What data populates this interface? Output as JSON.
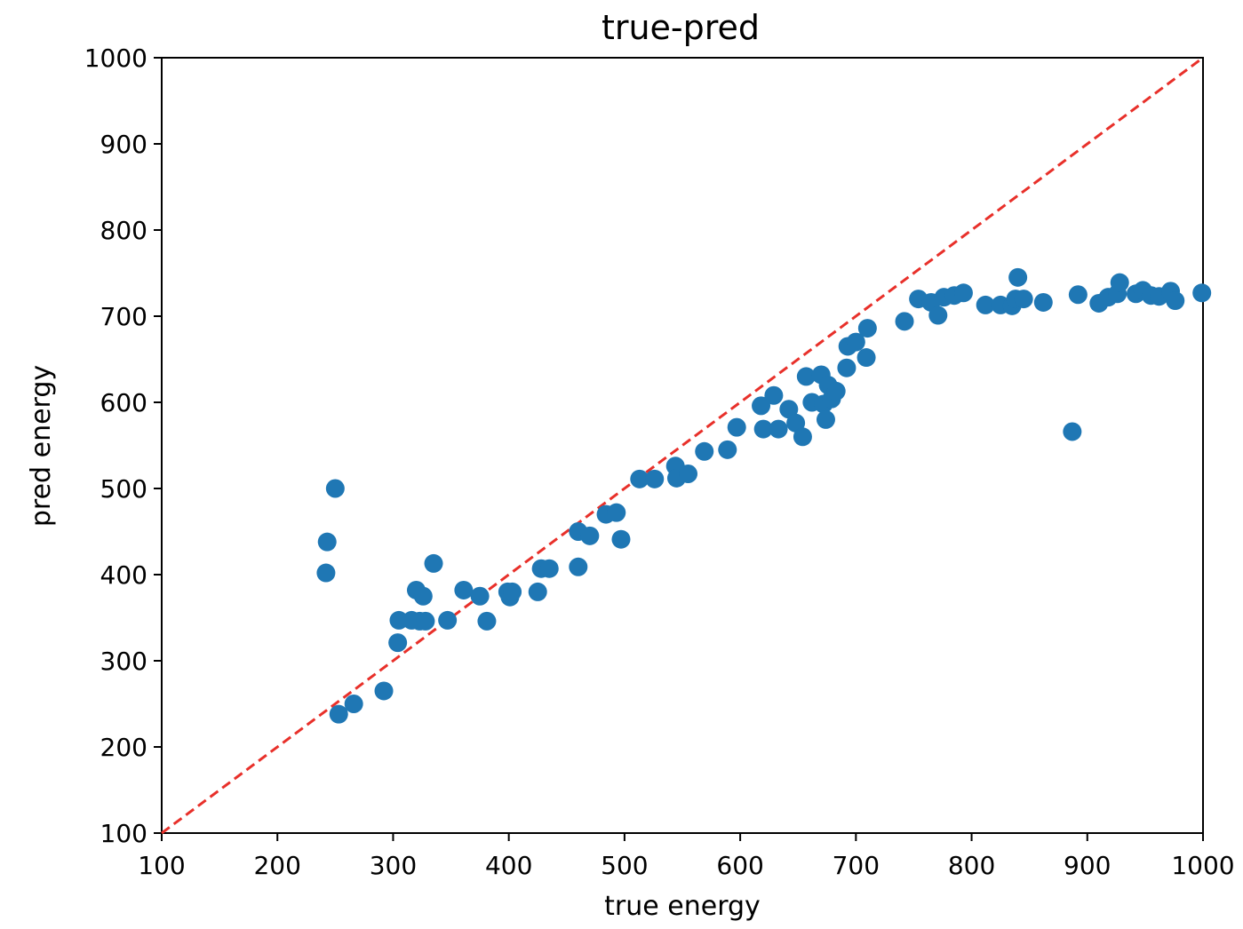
{
  "chart_data": {
    "type": "scatter",
    "title": "true-pred",
    "xlabel": "true energy",
    "ylabel": "pred energy",
    "xlim": [
      100,
      1000
    ],
    "ylim": [
      100,
      1000
    ],
    "xticks": [
      100,
      200,
      300,
      400,
      500,
      600,
      700,
      800,
      900,
      1000
    ],
    "yticks": [
      100,
      200,
      300,
      400,
      500,
      600,
      700,
      800,
      900,
      1000
    ],
    "grid": false,
    "legend": "none",
    "point_color": "#1f77b4",
    "reference_line": {
      "style": "dashed",
      "color": "#e8302a",
      "from": [
        100,
        100
      ],
      "to": [
        1000,
        1000
      ]
    },
    "points": [
      [
        242,
        402
      ],
      [
        243,
        438
      ],
      [
        250,
        500
      ],
      [
        253,
        238
      ],
      [
        266,
        250
      ],
      [
        292,
        265
      ],
      [
        304,
        321
      ],
      [
        305,
        347
      ],
      [
        316,
        347
      ],
      [
        320,
        382
      ],
      [
        323,
        346
      ],
      [
        326,
        375
      ],
      [
        328,
        346
      ],
      [
        335,
        413
      ],
      [
        347,
        347
      ],
      [
        361,
        382
      ],
      [
        375,
        375
      ],
      [
        381,
        346
      ],
      [
        399,
        380
      ],
      [
        401,
        374
      ],
      [
        403,
        380
      ],
      [
        425,
        380
      ],
      [
        428,
        407
      ],
      [
        435,
        407
      ],
      [
        460,
        409
      ],
      [
        460,
        450
      ],
      [
        470,
        445
      ],
      [
        484,
        470
      ],
      [
        493,
        472
      ],
      [
        497,
        441
      ],
      [
        513,
        511
      ],
      [
        526,
        511
      ],
      [
        544,
        526
      ],
      [
        545,
        512
      ],
      [
        555,
        517
      ],
      [
        569,
        543
      ],
      [
        589,
        545
      ],
      [
        597,
        571
      ],
      [
        618,
        596
      ],
      [
        620,
        569
      ],
      [
        629,
        608
      ],
      [
        633,
        569
      ],
      [
        642,
        592
      ],
      [
        648,
        576
      ],
      [
        654,
        560
      ],
      [
        657,
        630
      ],
      [
        662,
        600
      ],
      [
        670,
        632
      ],
      [
        672,
        598
      ],
      [
        674,
        580
      ],
      [
        676,
        620
      ],
      [
        679,
        604
      ],
      [
        683,
        613
      ],
      [
        692,
        640
      ],
      [
        693,
        665
      ],
      [
        700,
        670
      ],
      [
        709,
        652
      ],
      [
        710,
        686
      ],
      [
        742,
        694
      ],
      [
        754,
        720
      ],
      [
        765,
        716
      ],
      [
        771,
        701
      ],
      [
        776,
        722
      ],
      [
        785,
        724
      ],
      [
        793,
        727
      ],
      [
        812,
        713
      ],
      [
        825,
        713
      ],
      [
        835,
        712
      ],
      [
        838,
        720
      ],
      [
        840,
        745
      ],
      [
        845,
        720
      ],
      [
        862,
        716
      ],
      [
        887,
        566
      ],
      [
        892,
        725
      ],
      [
        910,
        715
      ],
      [
        918,
        722
      ],
      [
        926,
        726
      ],
      [
        928,
        739
      ],
      [
        942,
        726
      ],
      [
        948,
        730
      ],
      [
        955,
        724
      ],
      [
        962,
        723
      ],
      [
        972,
        729
      ],
      [
        976,
        718
      ],
      [
        999,
        727
      ]
    ]
  }
}
